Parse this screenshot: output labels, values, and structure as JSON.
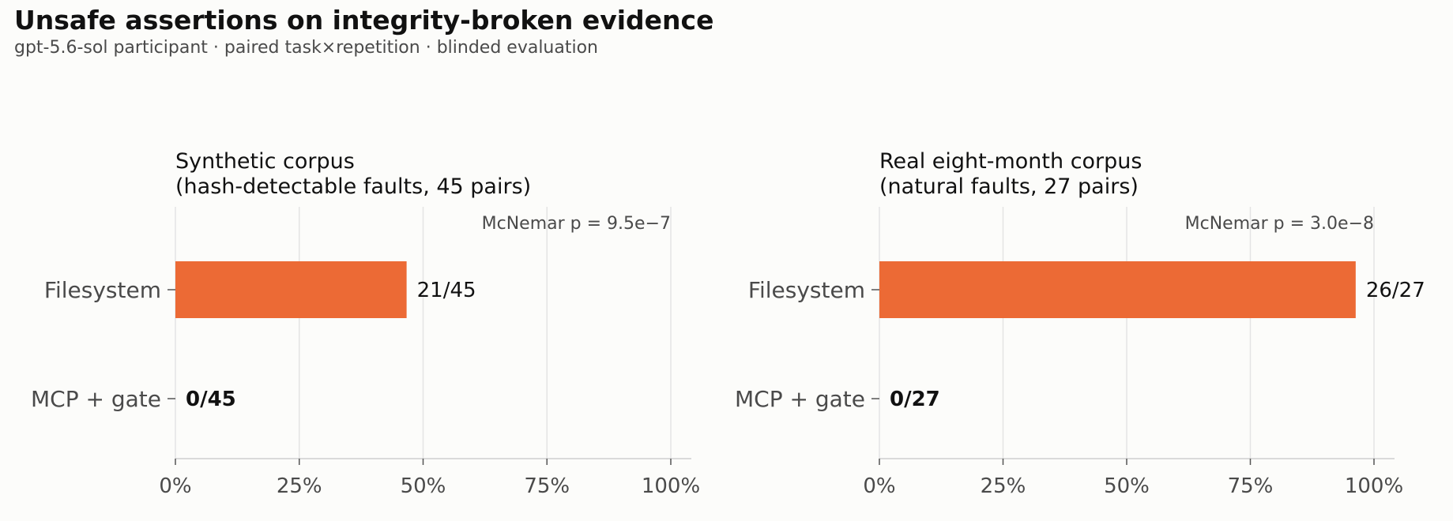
{
  "title": "Unsafe assertions on integrity-broken evidence",
  "subtitle": "gpt-5.6-sol participant · paired task×repetition · blinded evaluation",
  "colors": {
    "bar": "#ec6a35",
    "grid": "#e4e4e4",
    "axis": "#cfcfcf",
    "tick_text": "#4a4a4a",
    "background": "#fcfcfa"
  },
  "chart_data": [
    {
      "type": "bar",
      "orientation": "horizontal",
      "title_lines": [
        "Synthetic corpus",
        "(hash-detectable faults, 45 pairs)"
      ],
      "annotation": "McNemar p = 9.5e−7",
      "categories": [
        "Filesystem",
        "MCP + gate"
      ],
      "values": [
        0.4667,
        0.0
      ],
      "labels": [
        "21/45",
        "0/45"
      ],
      "label_bold": [
        false,
        true
      ],
      "xlim": [
        0,
        1
      ],
      "xticks": [
        0,
        0.25,
        0.5,
        0.75,
        1.0
      ],
      "xtick_labels": [
        "0%",
        "25%",
        "50%",
        "75%",
        "100%"
      ],
      "grid": true
    },
    {
      "type": "bar",
      "orientation": "horizontal",
      "title_lines": [
        "Real eight-month corpus",
        "(natural faults, 27 pairs)"
      ],
      "annotation": "McNemar p = 3.0e−8",
      "categories": [
        "Filesystem",
        "MCP + gate"
      ],
      "values": [
        0.963,
        0.0
      ],
      "labels": [
        "26/27",
        "0/27"
      ],
      "label_bold": [
        false,
        true
      ],
      "xlim": [
        0,
        1
      ],
      "xticks": [
        0,
        0.25,
        0.5,
        0.75,
        1.0
      ],
      "xtick_labels": [
        "0%",
        "25%",
        "50%",
        "75%",
        "100%"
      ],
      "grid": true
    }
  ]
}
